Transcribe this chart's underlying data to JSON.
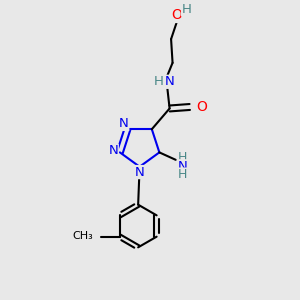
{
  "bg_color": "#e8e8e8",
  "atom_colors": {
    "C": "#000000",
    "N": "#0000ee",
    "O": "#ff0000",
    "H": "#4a8888"
  },
  "bond_width": 1.5,
  "font_size": 9.5
}
